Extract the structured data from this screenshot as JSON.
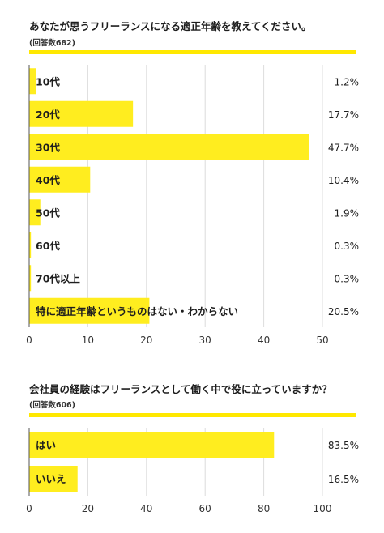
{
  "chart_data": [
    {
      "type": "bar",
      "orientation": "horizontal",
      "title": "あなたが思うフリーランスになる適正年齢を教えてください。",
      "subtitle": "(回答数682)",
      "categories": [
        "10代",
        "20代",
        "30代",
        "40代",
        "50代",
        "60代",
        "70代以上",
        "特に適正年齢というものはない・わからない"
      ],
      "values": [
        1.2,
        17.7,
        47.7,
        10.4,
        1.9,
        0.3,
        0.3,
        20.5
      ],
      "value_labels": [
        "1.2%",
        "17.7%",
        "47.7%",
        "10.4%",
        "1.9%",
        "0.3%",
        "0.3%",
        "20.5%"
      ],
      "xlim": [
        0,
        50
      ],
      "xticks": [
        "0",
        "10",
        "20",
        "30",
        "40",
        "50"
      ],
      "grid": true,
      "bar_color": "#ffed1f",
      "accent_color": "#ffe800"
    },
    {
      "type": "bar",
      "orientation": "horizontal",
      "title": "会社員の経験はフリーランスとして働く中で役に立っていますか？",
      "subtitle": "(回答数606)",
      "categories": [
        "はい",
        "いいえ"
      ],
      "values": [
        83.5,
        16.5
      ],
      "value_labels": [
        "83.5%",
        "16.5%"
      ],
      "xlim": [
        0,
        100
      ],
      "xticks": [
        "0",
        "20",
        "40",
        "60",
        "80",
        "100"
      ],
      "grid": true,
      "bar_color": "#ffed1f",
      "accent_color": "#ffe800"
    }
  ]
}
